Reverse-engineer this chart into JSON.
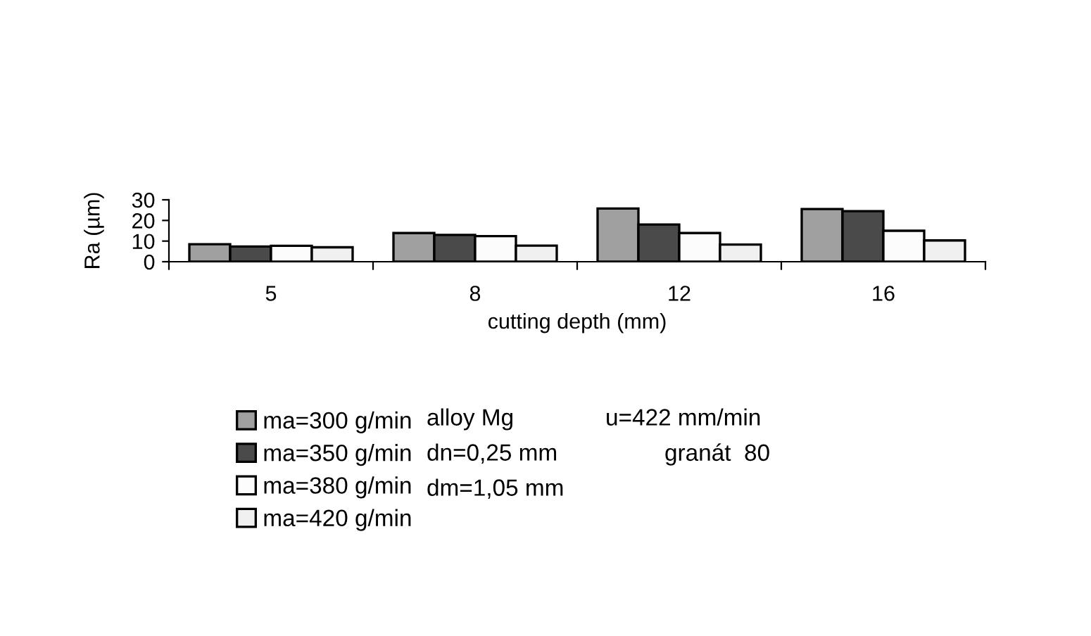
{
  "chart_data": {
    "type": "bar",
    "xlabel": "cutting depth (mm)",
    "ylabel": "Ra (µm)",
    "categories": [
      "5",
      "8",
      "12",
      "16"
    ],
    "series": [
      {
        "name": "ma=300 g/min",
        "color": "#a0a0a0",
        "values": [
          8.5,
          13.9,
          25.8,
          25.5
        ]
      },
      {
        "name": "ma=350 g/min",
        "color": "#4a4a4a",
        "values": [
          7.4,
          13,
          18,
          24.5
        ]
      },
      {
        "name": "ma=380 g/min",
        "color": "#fcfcfc",
        "values": [
          7.7,
          12.4,
          13.9,
          15
        ]
      },
      {
        "name": "ma=420 g/min",
        "color": "#f0f0f0",
        "values": [
          7,
          7.8,
          8.3,
          10.3
        ]
      }
    ],
    "ylim": [
      0,
      30
    ],
    "yticks": [
      0,
      10,
      20,
      30
    ],
    "grid": false,
    "legend": "bottom",
    "annotations": [
      "alloy Mg",
      "u=422 mm/min",
      "dn=0,25 mm",
      "granát  80",
      "dm=1,05 mm"
    ]
  }
}
